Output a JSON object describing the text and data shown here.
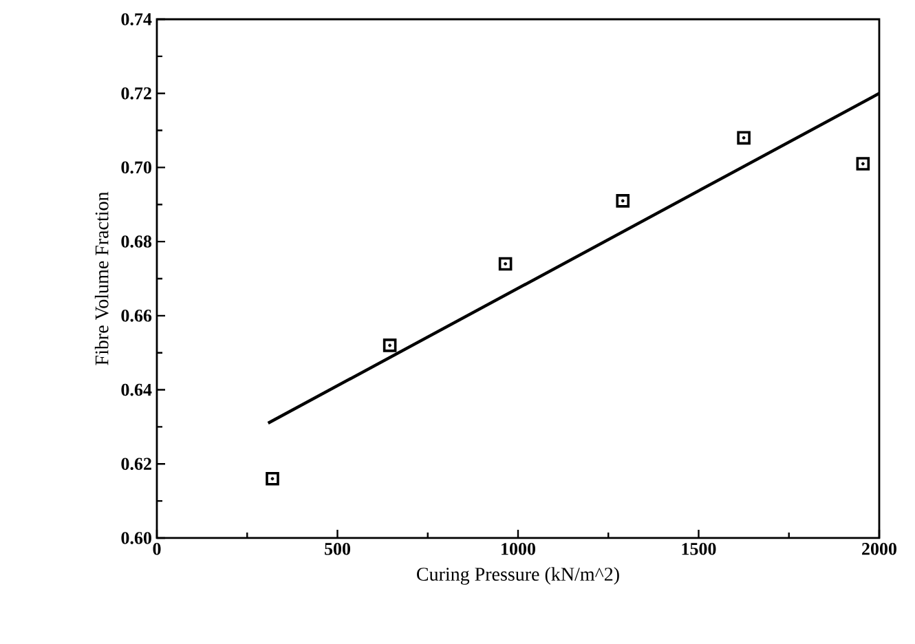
{
  "chart_data": {
    "type": "scatter",
    "xlabel": "Curing Pressure (kN/m^2)",
    "ylabel": "Fibre Volume Fraction",
    "xlim": [
      0,
      2000
    ],
    "ylim": [
      0.6,
      0.74
    ],
    "xticks": [
      0,
      500,
      1000,
      1500,
      2000
    ],
    "yticks": [
      {
        "value": 0.6,
        "label": "0.60"
      },
      0.62,
      0.64,
      0.66,
      0.68,
      {
        "value": 0.7,
        "label": "0.70"
      },
      0.72,
      0.74
    ],
    "grid": false,
    "series": [
      {
        "marker": "square",
        "color": "#000000",
        "x": [
          320,
          645,
          965,
          1290,
          1625,
          1955
        ],
        "values": [
          0.616,
          0.652,
          0.674,
          0.691,
          0.708,
          0.701
        ]
      },
      {
        "type": "line",
        "marker": "none",
        "line_style": "solid",
        "color": "#000000",
        "x": [
          308,
          2000
        ],
        "values": [
          0.631,
          0.72
        ]
      }
    ]
  }
}
